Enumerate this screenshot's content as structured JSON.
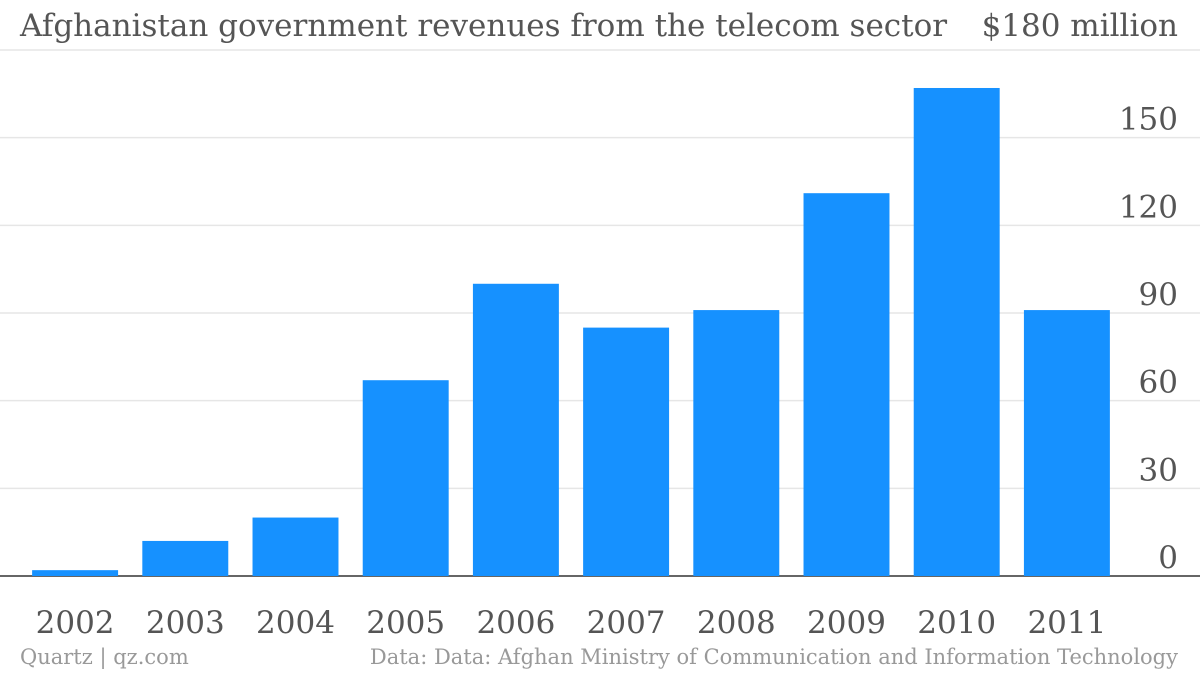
{
  "chart_data": {
    "type": "bar",
    "title": "Afghanistan government revenues from the telecom sector",
    "y_top_label": "$180 million",
    "categories": [
      "2002",
      "2003",
      "2004",
      "2005",
      "2006",
      "2007",
      "2008",
      "2009",
      "2010",
      "2011"
    ],
    "values": [
      2,
      12,
      20,
      67,
      100,
      85,
      91,
      131,
      167,
      91
    ],
    "ylim": [
      0,
      180
    ],
    "yticks": [
      "0",
      "30",
      "60",
      "90",
      "120",
      "150"
    ],
    "ytick_values": [
      0,
      30,
      60,
      90,
      120,
      150,
      180
    ],
    "bar_color": "#1691ff",
    "grid": true,
    "y_axis_side": "right"
  },
  "footer": {
    "brand": "Quartz | qz.com",
    "source": "Data: Data: Afghan Ministry of Communication and Information Technology"
  }
}
